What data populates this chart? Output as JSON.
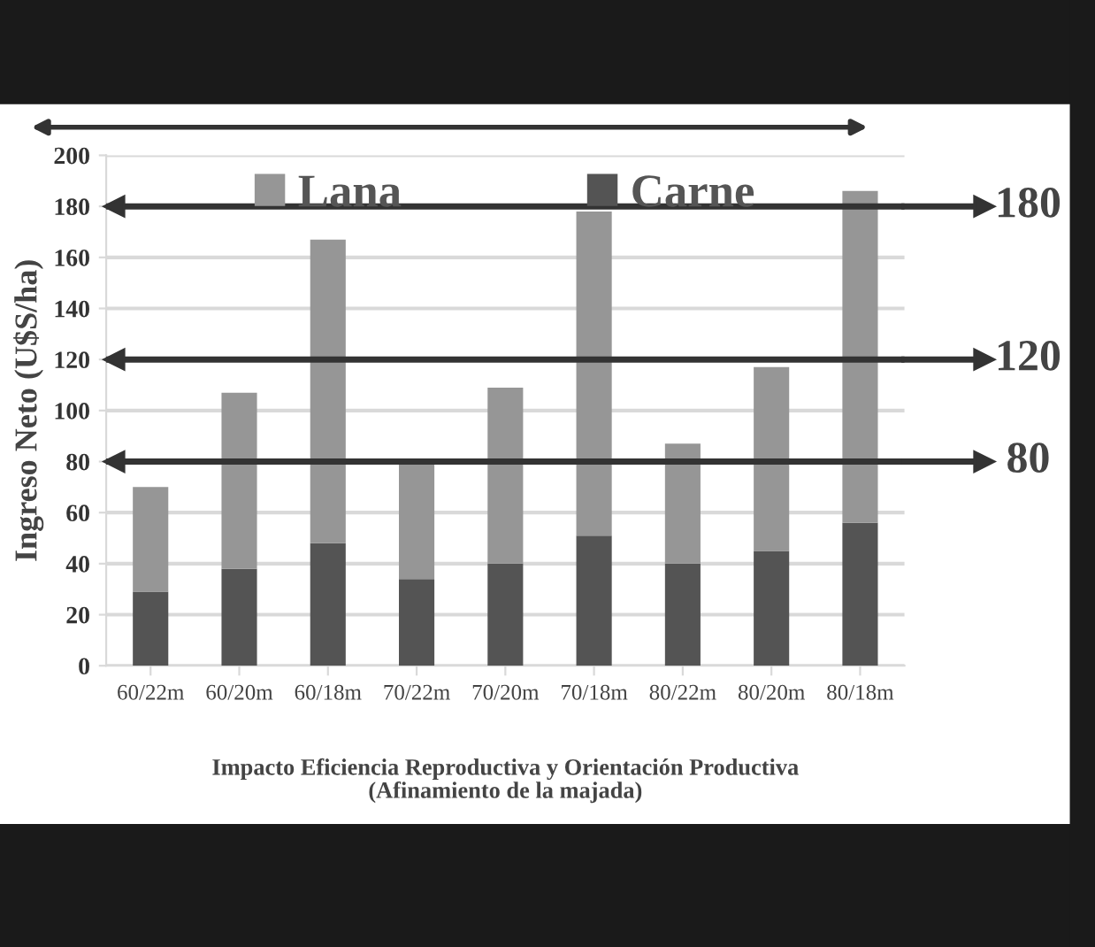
{
  "chart_data": {
    "type": "bar",
    "stacked": true,
    "categories": [
      "60/22m",
      "60/20m",
      "60/18m",
      "70/22m",
      "70/20m",
      "70/18m",
      "80/22m",
      "80/20m",
      "80/18m"
    ],
    "series": [
      {
        "name": "Carne",
        "color": "#545454",
        "values": [
          29,
          38,
          48,
          34,
          40,
          51,
          40,
          45,
          56
        ]
      },
      {
        "name": "Lana",
        "color": "#969696",
        "values": [
          41,
          69,
          119,
          45,
          69,
          127,
          47,
          72,
          130
        ]
      }
    ],
    "ylabel": "Ingreso Neto (U$S/ha)",
    "xlabel": "Impacto Eficiencia Reproductiva y Orientación Productiva\n(Afinamiento de la majada)",
    "ylim": [
      0,
      200
    ],
    "yticks": [
      0,
      20,
      40,
      60,
      80,
      100,
      120,
      140,
      160,
      180,
      200
    ],
    "grid": "y",
    "legend": "top",
    "ref_lines": [
      {
        "axis": "y",
        "value": 180,
        "label": "180",
        "color": "#333333"
      },
      {
        "axis": "y",
        "value": 120,
        "label": "120",
        "color": "#333333"
      },
      {
        "axis": "y",
        "value": 80,
        "label": "80",
        "color": "#333333"
      }
    ]
  }
}
